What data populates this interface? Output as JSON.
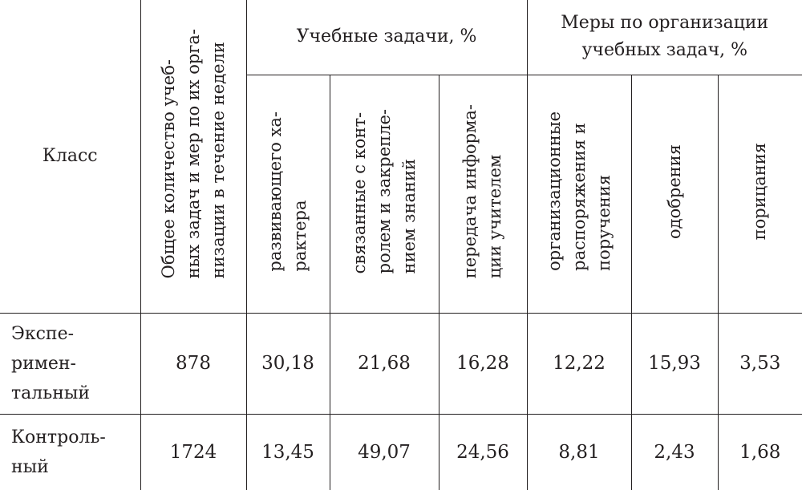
{
  "table": {
    "header": {
      "class_label": "Класс",
      "total_label": "Общее количество учеб-\nных задач и мер по их орга-\nнизации в течение недели",
      "group_tasks": "Учебные задачи, %",
      "group_measures": "Меры по организации\nучебных задач, %",
      "sub_tasks": [
        "развивающего ха-\nрактера",
        "связанные с конт-\nролем и закрепле-\nнием знаний",
        "передача информа-\nции учителем"
      ],
      "sub_measures": [
        "организационные\nраспоряжения и\nпоручения",
        "одобрения",
        "порицания"
      ]
    },
    "rows": [
      {
        "label": "Экспе-\nримен-\nтальный",
        "total": "878",
        "values": [
          "30,18",
          "21,68",
          "16,28",
          "12,22",
          "15,93",
          "3,53"
        ]
      },
      {
        "label": "Контроль-\nный",
        "total": "1724",
        "values": [
          "13,45",
          "49,07",
          "24,56",
          "8,81",
          "2,43",
          "1,68"
        ]
      }
    ]
  }
}
